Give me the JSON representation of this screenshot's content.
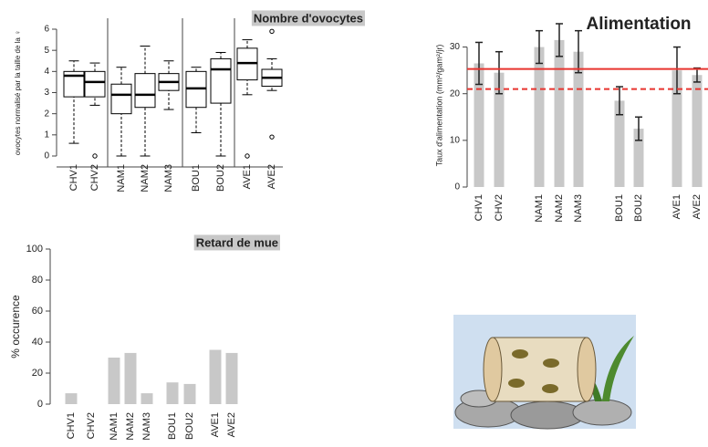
{
  "chart_data": [
    {
      "type": "box",
      "title": "Nombre d'ovocytes",
      "y_label": "ovocytes normalisé par la taille de la ♀",
      "categories": [
        "CHV1",
        "CHV2",
        "NAM1",
        "NAM2",
        "NAM3",
        "BOU1",
        "BOU2",
        "AVE1",
        "AVE2"
      ],
      "boxes": [
        {
          "whislo": 0.6,
          "q1": 2.8,
          "med": 3.8,
          "q3": 4.0,
          "whishi": 4.5
        },
        {
          "whislo": 2.4,
          "q1": 2.8,
          "med": 3.5,
          "q3": 4.0,
          "whishi": 4.4,
          "fliers": [
            0
          ]
        },
        {
          "whislo": 0,
          "q1": 2.0,
          "med": 2.9,
          "q3": 3.4,
          "whishi": 4.2
        },
        {
          "whislo": 0,
          "q1": 2.3,
          "med": 2.9,
          "q3": 3.9,
          "whishi": 5.2
        },
        {
          "whislo": 2.2,
          "q1": 3.1,
          "med": 3.5,
          "q3": 3.9,
          "whishi": 4.5
        },
        {
          "whislo": 1.1,
          "q1": 2.3,
          "med": 3.2,
          "q3": 4.0,
          "whishi": 4.2
        },
        {
          "whislo": 0,
          "q1": 2.5,
          "med": 4.1,
          "q3": 4.6,
          "whishi": 4.9
        },
        {
          "whislo": 2.9,
          "q1": 3.6,
          "med": 4.4,
          "q3": 5.1,
          "whishi": 5.5,
          "fliers": [
            0
          ]
        },
        {
          "whislo": 3.1,
          "q1": 3.3,
          "med": 3.7,
          "q3": 4.1,
          "whishi": 4.6,
          "fliers": [
            5.9,
            0.9
          ]
        }
      ],
      "ylim": [
        0,
        6
      ],
      "yticks": [
        0,
        1,
        2,
        3,
        4,
        5,
        6
      ],
      "color": "#000000"
    },
    {
      "type": "bar",
      "title": "Alimentation",
      "y_label": "Taux d'alimentation (mm²/gam²/jr)",
      "categories": [
        "CHV1",
        "CHV2",
        "NAM1",
        "NAM2",
        "NAM3",
        "BOU1",
        "BOU2",
        "AVE1",
        "AVE2"
      ],
      "values": [
        26.5,
        24.5,
        30,
        31.5,
        29,
        18.5,
        12.5,
        25,
        24
      ],
      "errors": [
        4.5,
        4.5,
        3.5,
        3.5,
        4.5,
        3,
        2.5,
        5,
        1.5
      ],
      "ref_lines": [
        {
          "value": 25.3,
          "color": "#e8342f",
          "style": "solid"
        },
        {
          "value": 21,
          "color": "#e8342f",
          "style": "dashed"
        }
      ],
      "ylim": [
        0,
        35
      ],
      "yticks": [
        0,
        10,
        20,
        30
      ],
      "color": "#c8c8c8"
    },
    {
      "type": "bar",
      "title": "Retard de mue",
      "y_label": "% occurence",
      "categories": [
        "CHV1",
        "CHV2",
        "NAM1",
        "NAM2",
        "NAM3",
        "BOU1",
        "BOU2",
        "AVE1",
        "AVE2"
      ],
      "values": [
        7,
        0,
        30,
        33,
        7,
        14,
        13,
        35,
        33
      ],
      "ylim": [
        0,
        100
      ],
      "yticks": [
        0,
        20,
        40,
        60,
        80,
        100
      ],
      "color": "#c8c8c8"
    }
  ]
}
